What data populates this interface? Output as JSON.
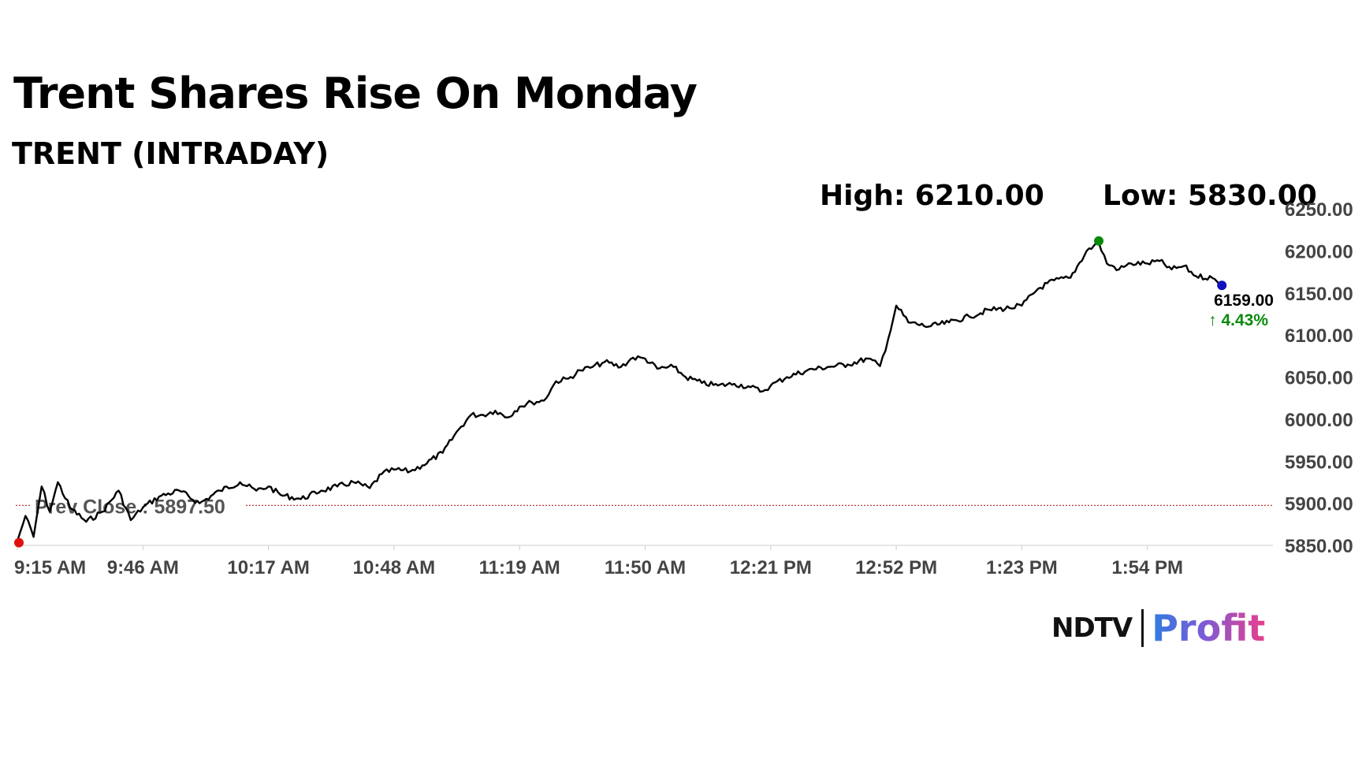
{
  "header": {
    "title": "Trent Shares Rise On Monday",
    "subtitle": "TRENT (INTRADAY)",
    "high_label": "High: 6210.00",
    "low_label": "Low: 5830.00"
  },
  "last_price": {
    "value": "6159.00",
    "change": "↑ 4.43%",
    "change_color": "#0a8a0a"
  },
  "prev_close": {
    "label": "Prev Close : 5897.50",
    "value": 5897.5,
    "color": "#b22222"
  },
  "logo": {
    "ndtv": "NDTV",
    "profit": "Profit"
  },
  "chart_data": {
    "type": "line",
    "title": "Trent Shares Rise On Monday",
    "subtitle": "TRENT (INTRADAY)",
    "xlabel": "",
    "ylabel": "",
    "x_ticks": [
      "9:15 AM",
      "9:46 AM",
      "10:17 AM",
      "10:48 AM",
      "11:19 AM",
      "11:50 AM",
      "12:21 PM",
      "12:52 PM",
      "1:23 PM",
      "1:54 PM"
    ],
    "y_ticks": [
      "6250.00",
      "6200.00",
      "6150.00",
      "6100.00",
      "6050.00",
      "6000.00",
      "5950.00",
      "5900.00",
      "5850.00"
    ],
    "ylim": [
      5850,
      6250
    ],
    "grid": false,
    "line_color": "#000000",
    "series": [
      {
        "x": [
          "9:15 AM",
          "9:17 AM",
          "9:19 AM",
          "9:21 AM",
          "9:23 AM",
          "9:25 AM",
          "9:28 AM",
          "9:32 AM",
          "9:36 AM",
          "9:40 AM",
          "9:43 AM",
          "9:46 AM",
          "9:50 AM",
          "9:55 AM",
          "10:00 AM",
          "10:05 AM",
          "10:10 AM",
          "10:14 AM",
          "10:17 AM",
          "10:20 AM",
          "10:25 AM",
          "10:30 AM",
          "10:34 AM",
          "10:38 AM",
          "10:42 AM",
          "10:45 AM",
          "10:48 AM",
          "10:52 AM",
          "10:55 AM",
          "11:00 AM",
          "11:04 AM",
          "11:07 AM",
          "11:10 AM",
          "11:13 AM",
          "11:16 AM",
          "11:19 AM",
          "11:22 AM",
          "11:25 AM",
          "11:28 AM",
          "11:31 AM",
          "11:34 AM",
          "11:37 AM",
          "11:40 AM",
          "11:44 AM",
          "11:47 AM",
          "11:50 AM",
          "11:53 AM",
          "11:57 AM",
          "12:00 PM",
          "12:04 PM",
          "12:08 PM",
          "12:12 PM",
          "12:16 PM",
          "12:19 PM",
          "12:21 PM",
          "12:25 PM",
          "12:30 PM",
          "12:35 PM",
          "12:40 PM",
          "12:45 PM",
          "12:48 PM",
          "12:50 PM",
          "12:52 PM",
          "12:55 PM",
          "1:00 PM",
          "1:05 PM",
          "1:10 PM",
          "1:15 PM",
          "1:20 PM",
          "1:23 PM",
          "1:27 PM",
          "1:31 PM",
          "1:35 PM",
          "1:39 PM",
          "1:42 PM",
          "1:44 PM",
          "1:47 PM",
          "1:50 PM",
          "1:54 PM",
          "1:57 PM",
          "2:00 PM",
          "2:03 PM",
          "2:06 PM",
          "2:10 PM",
          "2:12 PM"
        ],
        "y": [
          5855,
          5885,
          5860,
          5920,
          5890,
          5925,
          5895,
          5878,
          5890,
          5915,
          5880,
          5895,
          5908,
          5915,
          5900,
          5915,
          5925,
          5915,
          5920,
          5910,
          5905,
          5915,
          5920,
          5925,
          5918,
          5935,
          5940,
          5938,
          5945,
          5960,
          5988,
          6005,
          6005,
          6010,
          6002,
          6015,
          6020,
          6022,
          6045,
          6048,
          6058,
          6062,
          6068,
          6062,
          6073,
          6072,
          6060,
          6062,
          6050,
          6043,
          6040,
          6042,
          6038,
          6033,
          6040,
          6050,
          6058,
          6062,
          6065,
          6072,
          6063,
          6095,
          6135,
          6115,
          6110,
          6115,
          6122,
          6130,
          6132,
          6135,
          6155,
          6165,
          6168,
          6200,
          6210,
          6185,
          6178,
          6185,
          6185,
          6188,
          6178,
          6182,
          6170,
          6168,
          6159
        ]
      }
    ]
  }
}
